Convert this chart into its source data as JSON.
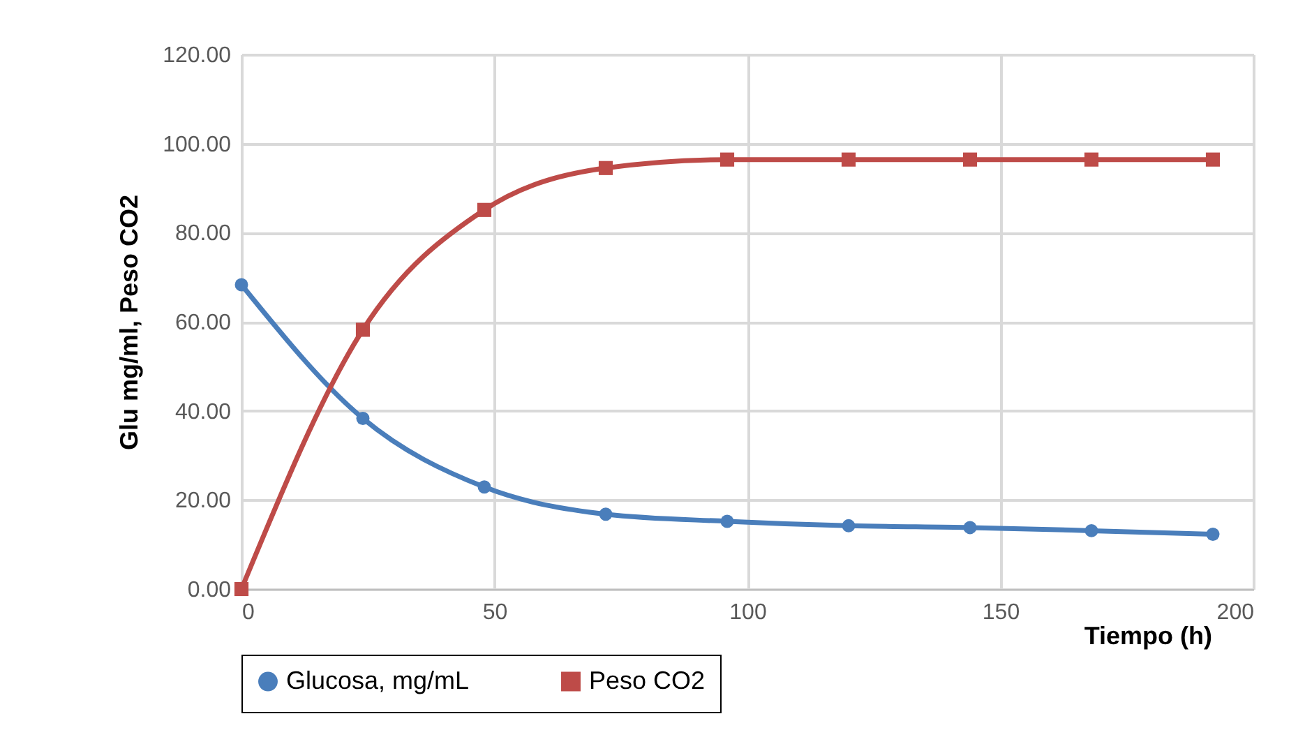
{
  "chart_data": {
    "type": "line",
    "xlabel": "Tiempo (h)",
    "ylabel": "Glu mg/ml, Peso CO2",
    "x": [
      0,
      24,
      48,
      72,
      96,
      120,
      144,
      168,
      192
    ],
    "series": [
      {
        "name": "Glucosa, mg/mL",
        "color": "#4a7ebb",
        "marker": "circle",
        "values": [
          68.3,
          38.3,
          22.9,
          16.8,
          15.2,
          14.2,
          13.8,
          13.1,
          12.3
        ]
      },
      {
        "name": "Peso CO2",
        "color": "#be4b48",
        "marker": "square",
        "values": [
          0,
          58.2,
          85.1,
          94.5,
          96.4,
          96.4,
          96.4,
          96.4,
          96.4
        ]
      }
    ],
    "xlim": [
      0,
      200
    ],
    "xticks": [
      0,
      50,
      100,
      150,
      200
    ],
    "ylim": [
      0,
      120
    ],
    "yticks": [
      {
        "value": 0,
        "label": "0.00"
      },
      {
        "value": 20,
        "label": "20.00"
      },
      {
        "value": 40,
        "label": "40.00"
      },
      {
        "value": 60,
        "label": "60.00"
      },
      {
        "value": 80,
        "label": "80.00"
      },
      {
        "value": 100,
        "label": "100.00"
      },
      {
        "value": 120,
        "label": "120.00"
      }
    ],
    "grid": true,
    "legend": "bottom",
    "line_style": "solid"
  }
}
